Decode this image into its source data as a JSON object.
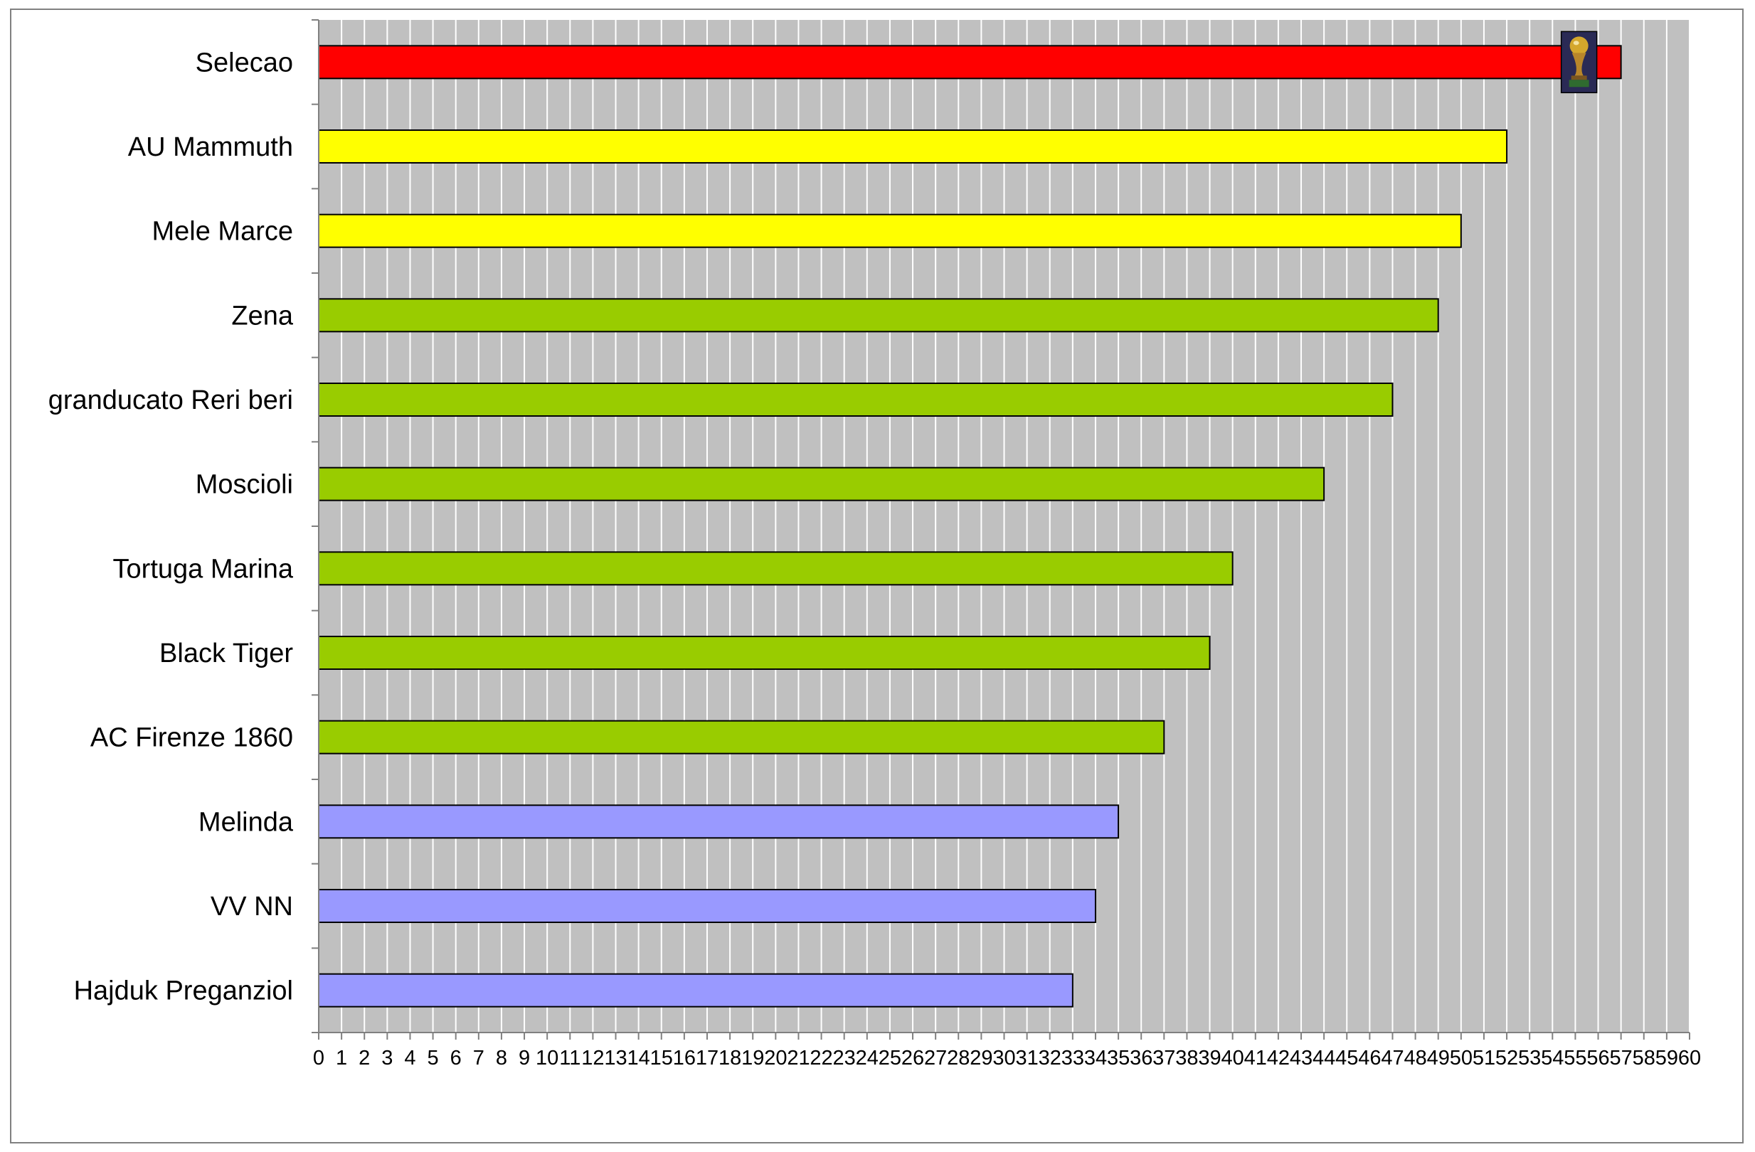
{
  "chart_data": {
    "type": "bar",
    "orientation": "horizontal",
    "categories": [
      "Selecao",
      "AU Mammuth",
      "Mele Marce",
      "Zena",
      "granducato Reri beri",
      "Moscioli",
      "Tortuga Marina",
      "Black Tiger",
      "AC Firenze 1860",
      "Melinda",
      "VV NN",
      "Hajduk Preganziol"
    ],
    "values": [
      57,
      52,
      50,
      49,
      47,
      44,
      40,
      39,
      37,
      35,
      34,
      33
    ],
    "colors": [
      "#ff0000",
      "#ffff00",
      "#ffff00",
      "#99cc00",
      "#99cc00",
      "#99cc00",
      "#99cc00",
      "#99cc00",
      "#99cc00",
      "#9999ff",
      "#9999ff",
      "#9999ff"
    ],
    "xlim": [
      0,
      60
    ],
    "x_ticks": [
      0,
      1,
      2,
      3,
      4,
      5,
      6,
      7,
      8,
      9,
      10,
      11,
      12,
      13,
      14,
      15,
      16,
      17,
      18,
      19,
      20,
      21,
      22,
      23,
      24,
      25,
      26,
      27,
      28,
      29,
      30,
      31,
      32,
      33,
      34,
      35,
      36,
      37,
      38,
      39,
      40,
      41,
      42,
      43,
      44,
      45,
      46,
      47,
      48,
      49,
      50,
      51,
      52,
      53,
      54,
      55,
      56,
      57,
      58,
      59,
      60
    ],
    "grid": true,
    "plot_background": "#c0c0c0",
    "legend": "none",
    "title": "",
    "xlabel": "",
    "ylabel": "",
    "annotation_icon": "trophy-icon"
  }
}
